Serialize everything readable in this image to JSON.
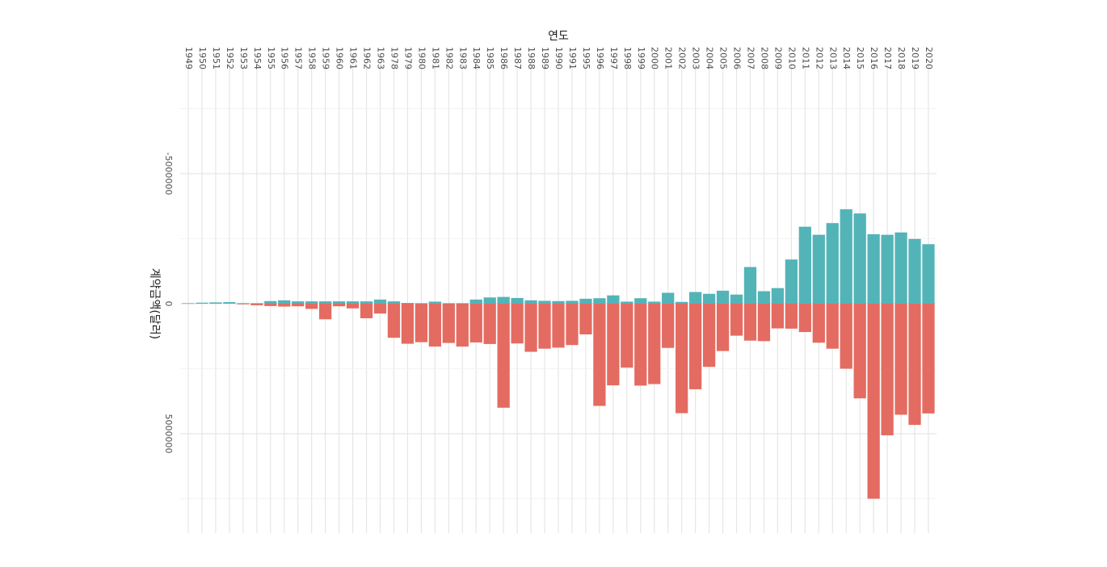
{
  "chart_data": {
    "type": "bar",
    "title": "",
    "xlabel": "연도",
    "ylabel": "계약금액(달러)",
    "categories": [
      "1949",
      "1950",
      "1951",
      "1952",
      "1953",
      "1954",
      "1955",
      "1956",
      "1957",
      "1958",
      "1959",
      "1960",
      "1961",
      "1962",
      "1963",
      "1978",
      "1979",
      "1980",
      "1981",
      "1982",
      "1983",
      "1984",
      "1985",
      "1986",
      "1987",
      "1988",
      "1989",
      "1990",
      "1991",
      "1995",
      "1996",
      "1997",
      "1998",
      "1999",
      "2000",
      "2001",
      "2002",
      "2003",
      "2004",
      "2005",
      "2006",
      "2007",
      "2008",
      "2009",
      "2010",
      "2011",
      "2012",
      "2013",
      "2014",
      "2015",
      "2016",
      "2017",
      "2018",
      "2019",
      "2020"
    ],
    "series": [
      {
        "color": "#E46B61",
        "values": [
          0,
          0,
          0,
          0,
          20000,
          60000,
          90000,
          110000,
          100000,
          200000,
          600000,
          100000,
          180000,
          560000,
          380000,
          1310000,
          1540000,
          1480000,
          1650000,
          1510000,
          1650000,
          1490000,
          1550000,
          4000000,
          1530000,
          1850000,
          1730000,
          1690000,
          1590000,
          1180000,
          3930000,
          3140000,
          2460000,
          3150000,
          3090000,
          1700000,
          4210000,
          3290000,
          2430000,
          1820000,
          1230000,
          1420000,
          1440000,
          950000,
          960000,
          1090000,
          1500000,
          1730000,
          2500000,
          3640000,
          7500000,
          5060000,
          4270000,
          4660000,
          4220000
        ]
      },
      {
        "color": "#53B4B8",
        "values": [
          -20000,
          -40000,
          -50000,
          -60000,
          -20000,
          -20000,
          -100000,
          -130000,
          -90000,
          -90000,
          -90000,
          -90000,
          -90000,
          -90000,
          -160000,
          -90000,
          -30000,
          -20000,
          -80000,
          -20000,
          -20000,
          -160000,
          -240000,
          -260000,
          -220000,
          -130000,
          -110000,
          -100000,
          -110000,
          -190000,
          -210000,
          -320000,
          -80000,
          -210000,
          -80000,
          -420000,
          -70000,
          -450000,
          -380000,
          -500000,
          -350000,
          -1410000,
          -480000,
          -600000,
          -1700000,
          -2960000,
          -2650000,
          -3100000,
          -3630000,
          -3470000,
          -2670000,
          -2650000,
          -2740000,
          -2490000,
          -2290000
        ]
      }
    ],
    "ylim": [
      -8500000,
      9000000
    ],
    "yticks": [
      {
        "value": -5000000,
        "label": "-5000000"
      },
      {
        "value": 0,
        "label": "0"
      },
      {
        "value": 5000000,
        "label": "5000000"
      }
    ],
    "grid": true,
    "legend": "none"
  }
}
